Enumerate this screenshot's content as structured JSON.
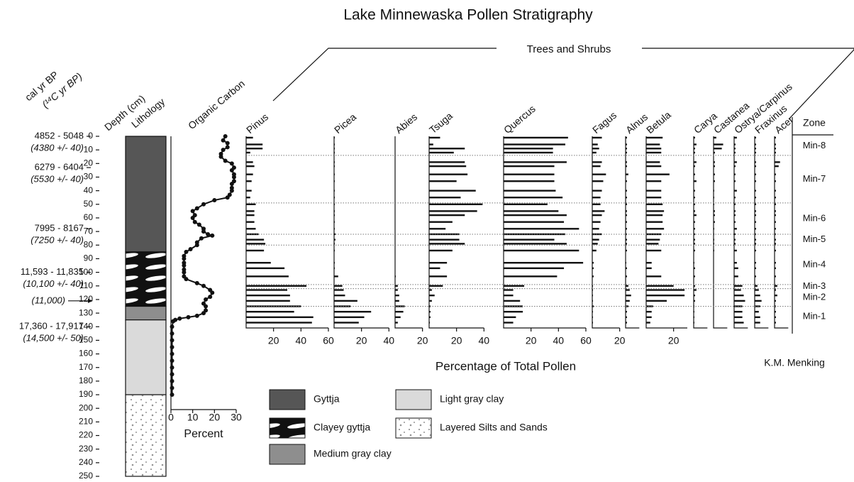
{
  "chart_data": {
    "type": "stratigraphy",
    "title": "Lake Minnewaska Pollen Stratigraphy",
    "age_header": [
      "cal  yr BP",
      "(¹⁴C yr BP)"
    ],
    "depth_label": "Depth (cm)",
    "ylim": [
      0,
      250
    ],
    "yticks": [
      0,
      10,
      20,
      30,
      40,
      50,
      60,
      70,
      80,
      90,
      100,
      110,
      120,
      130,
      140,
      150,
      160,
      170,
      180,
      190,
      200,
      210,
      220,
      230,
      240,
      250
    ],
    "ages": [
      {
        "labels": [
          "4852 - 5048",
          "(4380 +/- 40)"
        ],
        "depth": 0
      },
      {
        "labels": [
          "6279 - 6404",
          "(5530 +/- 40)"
        ],
        "depth": 23
      },
      {
        "labels": [
          "7995 - 8167",
          "(7250 +/- 40)"
        ],
        "depth": 68
      },
      {
        "labels": [
          "11,593 - 11,835",
          "(10,100 +/- 40)"
        ],
        "depth": 100
      },
      {
        "labels": [
          "(11,000)"
        ],
        "depth": 121
      },
      {
        "labels": [
          "17,360 - 17,917",
          "(14,500 +/- 50)"
        ],
        "depth": 140
      }
    ],
    "lithology_label": "Lithology",
    "lithology": [
      {
        "name": "Gyttja",
        "top": 0,
        "bottom": 85
      },
      {
        "name": "Clayey  gyttja",
        "top": 85,
        "bottom": 125
      },
      {
        "name": "Medium gray clay",
        "top": 125,
        "bottom": 135
      },
      {
        "name": "Light gray clay",
        "top": 135,
        "bottom": 190
      },
      {
        "name": "Layered Silts and Sands",
        "top": 190,
        "bottom": 250
      }
    ],
    "organic_carbon": {
      "title": "Organic Carbon",
      "xlabel": "Percent",
      "xlim": [
        0,
        30
      ],
      "xticks": [
        0,
        10,
        20,
        30
      ],
      "depths": [
        0,
        3,
        5,
        8,
        10,
        13,
        15,
        18,
        20,
        23,
        25,
        28,
        30,
        33,
        35,
        38,
        40,
        43,
        45,
        47,
        50,
        53,
        55,
        58,
        60,
        63,
        65,
        68,
        70,
        72,
        73,
        75,
        78,
        80,
        83,
        85,
        88,
        90,
        93,
        95,
        98,
        100,
        103,
        105,
        108,
        110,
        113,
        115,
        118,
        120,
        123,
        125,
        128,
        130,
        132,
        133,
        134,
        135,
        136,
        140,
        145,
        150,
        155,
        160,
        165,
        170,
        175,
        180,
        185,
        190
      ],
      "values": [
        25,
        24,
        26,
        26,
        24,
        23,
        23,
        25,
        28,
        29,
        28,
        29,
        29,
        29,
        28,
        28,
        28,
        27,
        26,
        20,
        15,
        12,
        10,
        11,
        10,
        11,
        13,
        15,
        15,
        17,
        19,
        14,
        12,
        12,
        9,
        7,
        6,
        6,
        6,
        6,
        6,
        6,
        6,
        7,
        12,
        15,
        18,
        19,
        18,
        16,
        15,
        16,
        16,
        15,
        12,
        8,
        4,
        2,
        1,
        0.5,
        0.5,
        0.5,
        0.5,
        0.5,
        0.5,
        0.5,
        0.5,
        0.5,
        0.5,
        0.5
      ]
    },
    "pollen": {
      "group": "Trees and Shrubs",
      "xlabel": "Percentage of Total Pollen",
      "depths": [
        1,
        6,
        9,
        12,
        19,
        22,
        28,
        33,
        40,
        45,
        50,
        55,
        58,
        63,
        68,
        72,
        76,
        79,
        84,
        93,
        97,
        103,
        110,
        113,
        117,
        121,
        125,
        129,
        133,
        137
      ],
      "taxa": [
        {
          "name": "Pinus",
          "xlim": [
            0,
            60
          ],
          "xticks": [
            20,
            40,
            60
          ],
          "values": [
            5,
            12,
            12,
            3,
            5,
            6,
            5,
            4,
            4,
            3,
            7,
            6,
            6,
            6,
            7,
            9,
            13,
            14,
            13,
            18,
            28,
            31,
            44,
            30,
            32,
            32,
            40,
            35,
            49,
            48
          ]
        },
        {
          "name": "Picea",
          "xlim": [
            0,
            40
          ],
          "xticks": [
            20,
            40
          ],
          "values": [
            0.5,
            0.5,
            0.5,
            0.5,
            0.5,
            0.5,
            0.5,
            0.5,
            0.5,
            0.5,
            0.5,
            0.5,
            0.5,
            0.5,
            0.5,
            1,
            1,
            0.5,
            0.5,
            0.5,
            0.5,
            3,
            6,
            7,
            8,
            17,
            12,
            27,
            22,
            18
          ]
        },
        {
          "name": "Abies",
          "xlim": [
            0,
            20
          ],
          "xticks": [
            20
          ],
          "values": [
            0,
            0,
            0,
            0,
            0,
            0,
            0,
            0,
            0,
            0,
            0,
            0,
            0,
            0,
            0,
            0,
            0,
            0,
            0,
            0,
            0,
            0.5,
            2,
            2,
            3,
            3,
            7,
            6,
            4,
            2
          ]
        },
        {
          "name": "Tsuga",
          "xlim": [
            0,
            40
          ],
          "xticks": [
            20,
            40
          ],
          "values": [
            8,
            3,
            26,
            18,
            26,
            27,
            28,
            20,
            34,
            23,
            39,
            35,
            26,
            17,
            12,
            22,
            22,
            26,
            17,
            13,
            8,
            13,
            10,
            2,
            4,
            2,
            1,
            1,
            1,
            0.5
          ]
        },
        {
          "name": "Quercus",
          "xlim": [
            0,
            60
          ],
          "xticks": [
            20,
            40,
            60
          ],
          "values": [
            47,
            45,
            36,
            36,
            46,
            37,
            37,
            37,
            38,
            43,
            32,
            40,
            46,
            44,
            55,
            45,
            37,
            46,
            55,
            58,
            44,
            39,
            15,
            7,
            7,
            12,
            14,
            14,
            9,
            7
          ]
        },
        {
          "name": "Fagus",
          "xlim": [
            0,
            20
          ],
          "xticks": [
            20
          ],
          "values": [
            7,
            4,
            5,
            3,
            7,
            6,
            10,
            8,
            7,
            6,
            6,
            9,
            7,
            6,
            5,
            7,
            5,
            4,
            3,
            1,
            1,
            1,
            0.5,
            0.5,
            0.5,
            0.5,
            1,
            0.5,
            0.5,
            0.5
          ]
        },
        {
          "name": "Alnus",
          "xlim": [
            0,
            10
          ],
          "values": [
            1,
            1,
            1,
            1,
            1,
            1,
            2,
            1,
            1,
            1,
            1,
            1,
            1,
            1,
            1,
            1,
            1,
            1,
            1,
            0.5,
            1,
            1,
            2,
            3,
            4,
            3,
            2,
            1,
            1,
            1
          ]
        },
        {
          "name": "Betula",
          "xlim": [
            0,
            30
          ],
          "xticks": [
            20
          ],
          "values": [
            12,
            10,
            11,
            11,
            10,
            11,
            17,
            11,
            11,
            11,
            12,
            13,
            12,
            12,
            13,
            11,
            10,
            9,
            11,
            4,
            4,
            11,
            20,
            28,
            28,
            15,
            5,
            4,
            4,
            3
          ]
        },
        {
          "name": "Carya",
          "xlim": [
            0,
            10
          ],
          "values": [
            1,
            2,
            1,
            1,
            2,
            1,
            1,
            2,
            1,
            1,
            1,
            1,
            2,
            1,
            1,
            1,
            1,
            1,
            1,
            0.5,
            1,
            1,
            1,
            2,
            1,
            1,
            0.5,
            0.5,
            0.5,
            0.5
          ]
        },
        {
          "name": "Castanea",
          "xlim": [
            0,
            10
          ],
          "values": [
            2,
            7,
            6,
            1,
            1,
            1,
            1,
            1,
            0.5,
            0.5,
            0.5,
            1,
            1,
            1,
            0.5,
            0.5,
            0.5,
            0.5,
            0.5,
            0,
            0,
            0,
            0,
            0,
            0,
            0,
            0,
            0,
            0,
            0
          ]
        },
        {
          "name": "Ostrya/Carpinus",
          "xlim": [
            0,
            10
          ],
          "values": [
            2,
            1,
            1,
            1,
            2,
            1,
            1,
            1,
            2,
            1,
            1,
            1,
            1,
            1,
            2,
            1,
            1,
            1,
            2,
            2,
            3,
            3,
            6,
            5,
            7,
            8,
            6,
            6,
            6,
            7
          ]
        },
        {
          "name": "Fraxinus",
          "xlim": [
            0,
            10
          ],
          "values": [
            1,
            1,
            1,
            1,
            1,
            1,
            1,
            1,
            1,
            1,
            1,
            1,
            1,
            1,
            1,
            1,
            1,
            1,
            1,
            1,
            1,
            1,
            2,
            3,
            4,
            5,
            4,
            3,
            4,
            4
          ]
        },
        {
          "name": "Acer",
          "xlim": [
            0,
            10
          ],
          "values": [
            1,
            1,
            1,
            1,
            4,
            3,
            1,
            1,
            1,
            1,
            1,
            1,
            1,
            1,
            1,
            1,
            1,
            1,
            1,
            1,
            1,
            1,
            2,
            1,
            2,
            1,
            1,
            1,
            1,
            1
          ]
        }
      ]
    },
    "zones": {
      "label": "Zone",
      "units": [
        {
          "name": "Min-8",
          "top": 0,
          "bottom": 14
        },
        {
          "name": "Min-7",
          "top": 14,
          "bottom": 49
        },
        {
          "name": "Min-6",
          "top": 49,
          "bottom": 72
        },
        {
          "name": "Min-5",
          "top": 72,
          "bottom": 80
        },
        {
          "name": "Min-4",
          "top": 80,
          "bottom": 109
        },
        {
          "name": "Min-3",
          "top": 109,
          "bottom": 112
        },
        {
          "name": "Min-2",
          "top": 112,
          "bottom": 125
        },
        {
          "name": "Min-1",
          "top": 125,
          "bottom": 140
        }
      ]
    },
    "credit": "K.M. Menking"
  }
}
